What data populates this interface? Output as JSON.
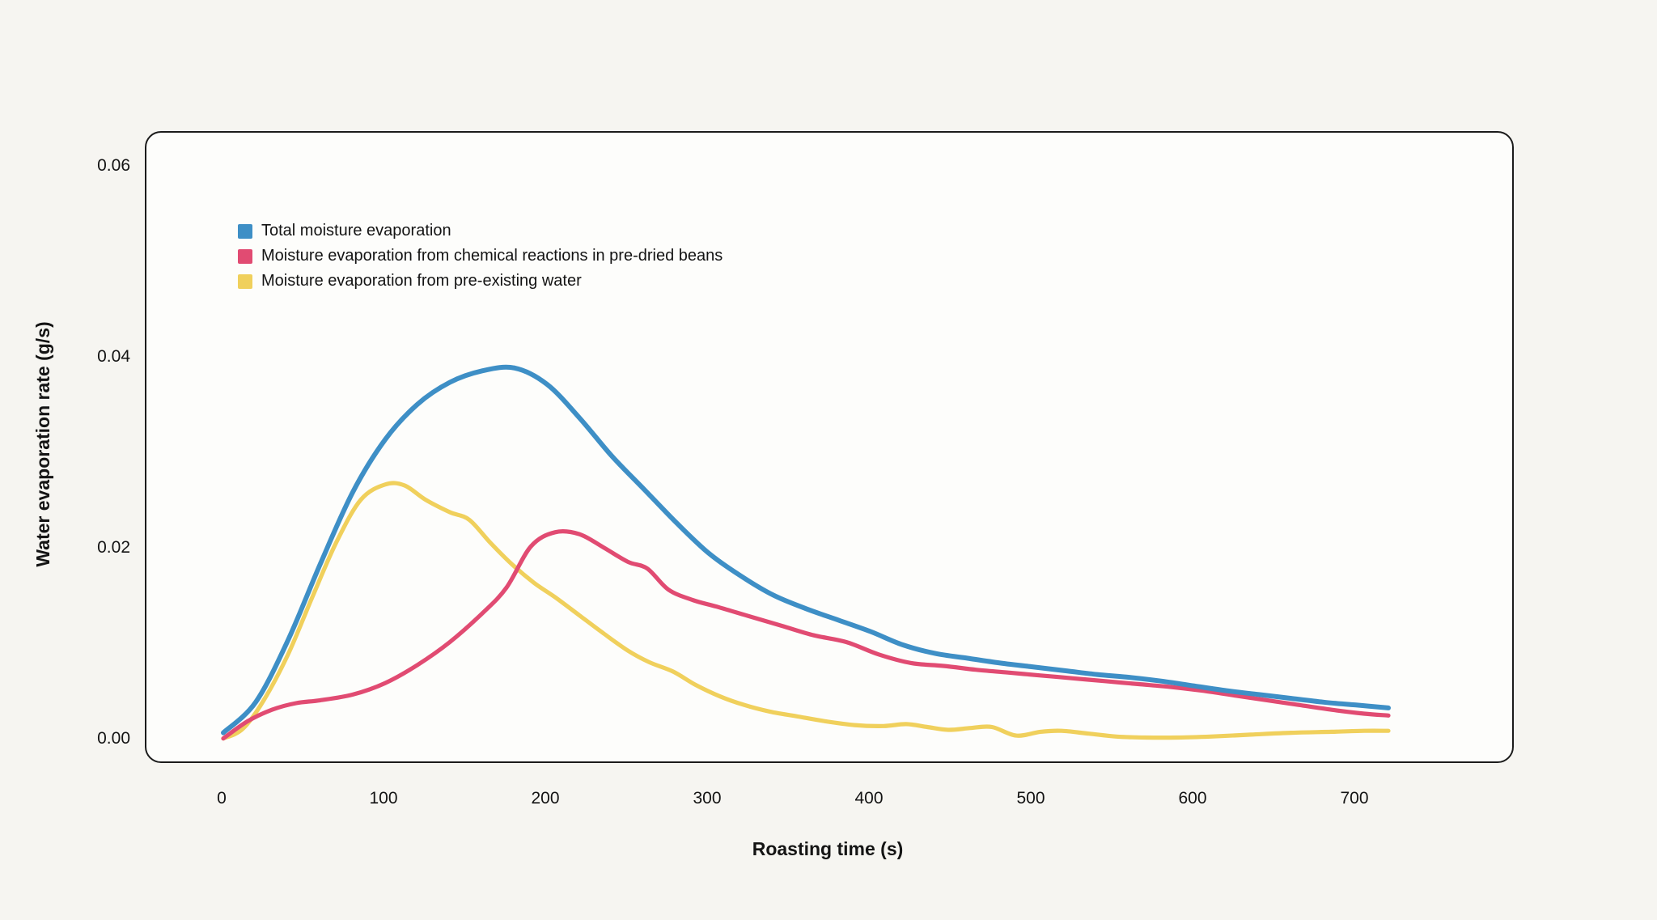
{
  "page": {
    "background": "#f6f5f1",
    "panel_background": "#fdfdfb",
    "panel_border": "#1b1b1b",
    "text_color": "#141414"
  },
  "chart_data": {
    "type": "line",
    "title": "",
    "xlabel": "Roasting time (s)",
    "ylabel": "Water evaporation rate (g/s)",
    "xlim": [
      0,
      760
    ],
    "ylim": [
      0,
      0.062
    ],
    "grid": false,
    "legend_position": "top-left",
    "x_ticks": [
      0,
      100,
      200,
      300,
      400,
      500,
      600,
      700
    ],
    "x_tick_labels": [
      "0",
      "100",
      "200",
      "300",
      "400",
      "500",
      "600",
      "700"
    ],
    "y_ticks": [
      0,
      0.02,
      0.04,
      0.06
    ],
    "y_tick_labels": [
      "0.00",
      "0.02",
      "0.04",
      "0.06"
    ],
    "series": [
      {
        "name": "Total moisture evaporation",
        "color": "#3e8fc6",
        "stroke_width": 6,
        "points": [
          [
            0,
            0.0008
          ],
          [
            20,
            0.004
          ],
          [
            40,
            0.0105
          ],
          [
            60,
            0.0185
          ],
          [
            80,
            0.026
          ],
          [
            100,
            0.0315
          ],
          [
            120,
            0.0352
          ],
          [
            140,
            0.0375
          ],
          [
            160,
            0.0387
          ],
          [
            180,
            0.039
          ],
          [
            200,
            0.0373
          ],
          [
            220,
            0.0338
          ],
          [
            240,
            0.0298
          ],
          [
            260,
            0.0263
          ],
          [
            280,
            0.0228
          ],
          [
            300,
            0.0196
          ],
          [
            320,
            0.0172
          ],
          [
            340,
            0.0152
          ],
          [
            360,
            0.0138
          ],
          [
            380,
            0.0126
          ],
          [
            400,
            0.0114
          ],
          [
            420,
            0.01
          ],
          [
            440,
            0.0091
          ],
          [
            460,
            0.0086
          ],
          [
            480,
            0.0081
          ],
          [
            500,
            0.0077
          ],
          [
            520,
            0.0073
          ],
          [
            540,
            0.0069
          ],
          [
            560,
            0.0066
          ],
          [
            580,
            0.0062
          ],
          [
            600,
            0.0057
          ],
          [
            620,
            0.0052
          ],
          [
            640,
            0.0048
          ],
          [
            660,
            0.0044
          ],
          [
            680,
            0.004
          ],
          [
            700,
            0.0037
          ],
          [
            720,
            0.0034
          ]
        ]
      },
      {
        "name": "Moisture evaporation from chemical reactions in pre-dried beans",
        "color": "#e14b72",
        "stroke_width": 5.2,
        "points": [
          [
            0,
            0.0002
          ],
          [
            15,
            0.002
          ],
          [
            30,
            0.0032
          ],
          [
            45,
            0.0039
          ],
          [
            60,
            0.0042
          ],
          [
            80,
            0.0048
          ],
          [
            100,
            0.006
          ],
          [
            120,
            0.0079
          ],
          [
            140,
            0.0103
          ],
          [
            160,
            0.0133
          ],
          [
            175,
            0.016
          ],
          [
            190,
            0.0203
          ],
          [
            205,
            0.0218
          ],
          [
            220,
            0.0216
          ],
          [
            235,
            0.0202
          ],
          [
            250,
            0.0187
          ],
          [
            262,
            0.018
          ],
          [
            275,
            0.0158
          ],
          [
            290,
            0.0147
          ],
          [
            305,
            0.014
          ],
          [
            325,
            0.013
          ],
          [
            345,
            0.012
          ],
          [
            365,
            0.011
          ],
          [
            385,
            0.0103
          ],
          [
            405,
            0.009
          ],
          [
            425,
            0.0081
          ],
          [
            445,
            0.0078
          ],
          [
            465,
            0.0074
          ],
          [
            485,
            0.0071
          ],
          [
            505,
            0.0068
          ],
          [
            525,
            0.0065
          ],
          [
            545,
            0.0062
          ],
          [
            565,
            0.0059
          ],
          [
            585,
            0.0056
          ],
          [
            605,
            0.0052
          ],
          [
            625,
            0.0047
          ],
          [
            645,
            0.0042
          ],
          [
            665,
            0.0037
          ],
          [
            685,
            0.0032
          ],
          [
            705,
            0.0028
          ],
          [
            720,
            0.0026
          ]
        ]
      },
      {
        "name": "Moisture evaporation from pre-existing water",
        "color": "#f0d05c",
        "stroke_width": 5.2,
        "points": [
          [
            0,
            0.0002
          ],
          [
            12,
            0.0012
          ],
          [
            25,
            0.0042
          ],
          [
            40,
            0.009
          ],
          [
            55,
            0.015
          ],
          [
            70,
            0.0208
          ],
          [
            85,
            0.0252
          ],
          [
            100,
            0.0268
          ],
          [
            112,
            0.0267
          ],
          [
            125,
            0.0252
          ],
          [
            140,
            0.0239
          ],
          [
            152,
            0.0231
          ],
          [
            165,
            0.0207
          ],
          [
            178,
            0.0185
          ],
          [
            192,
            0.0165
          ],
          [
            205,
            0.015
          ],
          [
            220,
            0.0131
          ],
          [
            235,
            0.0112
          ],
          [
            250,
            0.0094
          ],
          [
            263,
            0.0082
          ],
          [
            278,
            0.0072
          ],
          [
            292,
            0.0058
          ],
          [
            307,
            0.0046
          ],
          [
            322,
            0.0037
          ],
          [
            338,
            0.003
          ],
          [
            355,
            0.0025
          ],
          [
            372,
            0.002
          ],
          [
            390,
            0.0016
          ],
          [
            408,
            0.0015
          ],
          [
            422,
            0.0017
          ],
          [
            435,
            0.0014
          ],
          [
            448,
            0.0011
          ],
          [
            462,
            0.0013
          ],
          [
            475,
            0.0014
          ],
          [
            490,
            0.0005
          ],
          [
            505,
            0.0009
          ],
          [
            518,
            0.001
          ],
          [
            535,
            0.0007
          ],
          [
            552,
            0.0004
          ],
          [
            570,
            0.0003
          ],
          [
            590,
            0.0003
          ],
          [
            610,
            0.0004
          ],
          [
            635,
            0.0006
          ],
          [
            660,
            0.0008
          ],
          [
            685,
            0.0009
          ],
          [
            705,
            0.001
          ],
          [
            720,
            0.001
          ]
        ]
      }
    ]
  }
}
